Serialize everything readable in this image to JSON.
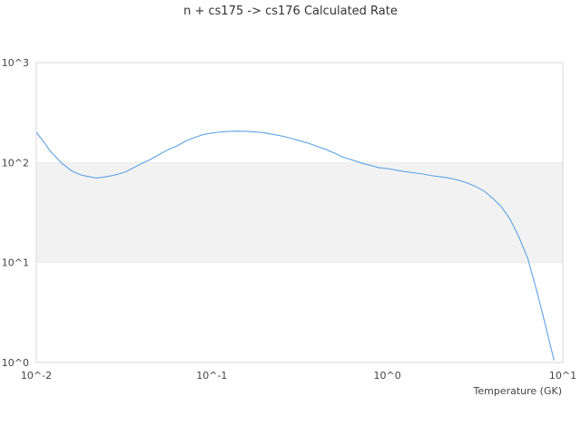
{
  "chart_data": {
    "type": "line",
    "title": "n + cs175 -> cs176 Calculated Rate",
    "xlabel": "Temperature (GK)",
    "ylabel": "",
    "xscale": "log",
    "yscale": "log",
    "xlim": [
      0.01,
      10
    ],
    "ylim": [
      1,
      1000
    ],
    "x_ticks": [
      {
        "value": 0.01,
        "label": "10^-2"
      },
      {
        "value": 0.1,
        "label": "10^-1"
      },
      {
        "value": 1,
        "label": "10^0"
      },
      {
        "value": 10,
        "label": "10^1"
      }
    ],
    "y_ticks": [
      {
        "value": 1,
        "label": "10^0"
      },
      {
        "value": 10,
        "label": "10^1"
      },
      {
        "value": 100,
        "label": "10^2"
      },
      {
        "value": 1000,
        "label": "10^3"
      }
    ],
    "grid": "alternating horizontal bands",
    "legend": "none",
    "colors": {
      "line": "#5ba3e6",
      "band": "#f2f2f2",
      "frame": "#d9d9d9"
    },
    "series": [
      {
        "x": [
          0.01,
          0.011,
          0.012,
          0.014,
          0.016,
          0.018,
          0.02,
          0.022,
          0.025,
          0.028,
          0.032,
          0.036,
          0.04,
          0.045,
          0.05,
          0.056,
          0.063,
          0.07,
          0.079,
          0.089,
          0.1,
          0.112,
          0.126,
          0.141,
          0.158,
          0.178,
          0.2,
          0.224,
          0.251,
          0.282,
          0.316,
          0.355,
          0.398,
          0.447,
          0.501,
          0.562,
          0.631,
          0.708,
          0.794,
          0.891,
          1.0,
          1.12,
          1.26,
          1.41,
          1.58,
          1.78,
          2.0,
          2.24,
          2.51,
          2.82,
          3.16,
          3.55,
          3.98,
          4.47,
          5.01,
          5.62,
          6.31,
          7.08,
          7.94,
          8.91
        ],
        "y": [
          200,
          162,
          130,
          98,
          82,
          75,
          72,
          70,
          72,
          75,
          80,
          89,
          98,
          108,
          120,
          134,
          146,
          162,
          177,
          190,
          197,
          202,
          205,
          206,
          205,
          202,
          198,
          191,
          184,
          175,
          165,
          156,
          145,
          135,
          124,
          113,
          106,
          99,
          94,
          89,
          87,
          84,
          81,
          79,
          77,
          74,
          72,
          70,
          67,
          63,
          58,
          52,
          44,
          36,
          27,
          18,
          11,
          5.3,
          2.4,
          1.05
        ]
      }
    ]
  }
}
